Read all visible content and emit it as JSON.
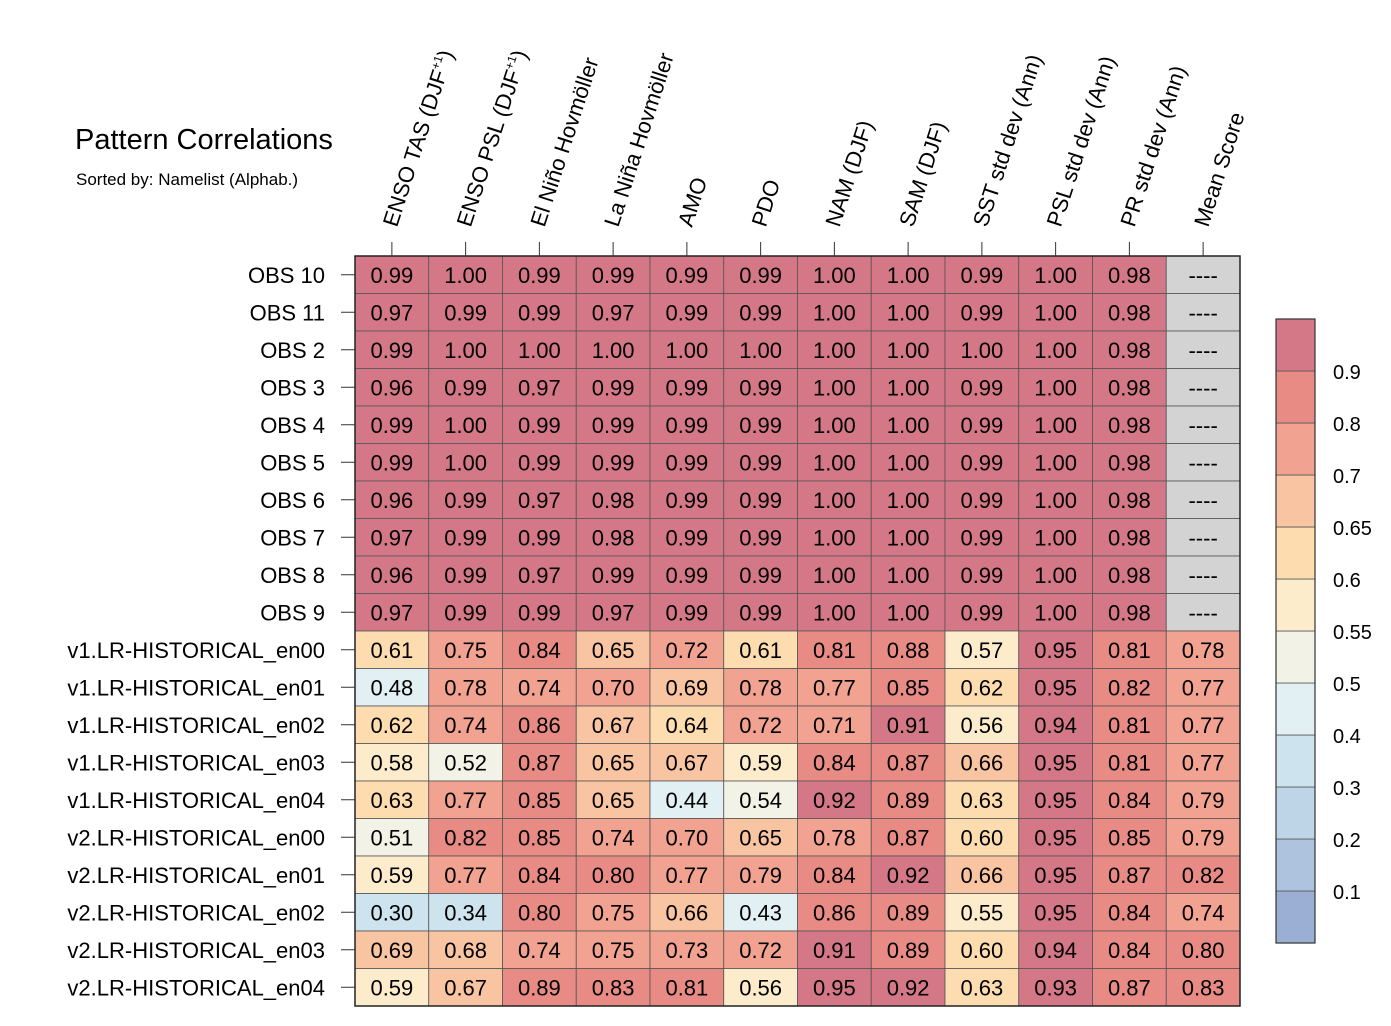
{
  "chart_data": {
    "type": "heatmap",
    "title": "Pattern Correlations",
    "subtitle": "Sorted by: Namelist (Alphab.)",
    "columns": [
      {
        "label": "ENSO TAS (DJF",
        "sup": "+1",
        "tail": ")"
      },
      {
        "label": "ENSO PSL (DJF",
        "sup": "+1",
        "tail": ")"
      },
      {
        "label": "El Niño Hovmöller"
      },
      {
        "label": "La Niña Hovmöller"
      },
      {
        "label": "AMO"
      },
      {
        "label": "PDO"
      },
      {
        "label": "NAM (DJF)"
      },
      {
        "label": "SAM (DJF)"
      },
      {
        "label": "SST std dev (Ann)"
      },
      {
        "label": "PSL std dev (Ann)"
      },
      {
        "label": "PR std dev (Ann)"
      },
      {
        "label": "Mean Score"
      }
    ],
    "rows": [
      "OBS 10",
      "OBS 11",
      "OBS 2",
      "OBS 3",
      "OBS 4",
      "OBS 5",
      "OBS 6",
      "OBS 7",
      "OBS 8",
      "OBS 9",
      "v1.LR-HISTORICAL_en00",
      "v1.LR-HISTORICAL_en01",
      "v1.LR-HISTORICAL_en02",
      "v1.LR-HISTORICAL_en03",
      "v1.LR-HISTORICAL_en04",
      "v2.LR-HISTORICAL_en00",
      "v2.LR-HISTORICAL_en01",
      "v2.LR-HISTORICAL_en02",
      "v2.LR-HISTORICAL_en03",
      "v2.LR-HISTORICAL_en04"
    ],
    "values": [
      [
        "0.99",
        "1.00",
        "0.99",
        "0.99",
        "0.99",
        "0.99",
        "1.00",
        "1.00",
        "0.99",
        "1.00",
        "0.98",
        "----"
      ],
      [
        "0.97",
        "0.99",
        "0.99",
        "0.97",
        "0.99",
        "0.99",
        "1.00",
        "1.00",
        "0.99",
        "1.00",
        "0.98",
        "----"
      ],
      [
        "0.99",
        "1.00",
        "1.00",
        "1.00",
        "1.00",
        "1.00",
        "1.00",
        "1.00",
        "1.00",
        "1.00",
        "0.98",
        "----"
      ],
      [
        "0.96",
        "0.99",
        "0.97",
        "0.99",
        "0.99",
        "0.99",
        "1.00",
        "1.00",
        "0.99",
        "1.00",
        "0.98",
        "----"
      ],
      [
        "0.99",
        "1.00",
        "0.99",
        "0.99",
        "0.99",
        "0.99",
        "1.00",
        "1.00",
        "0.99",
        "1.00",
        "0.98",
        "----"
      ],
      [
        "0.99",
        "1.00",
        "0.99",
        "0.99",
        "0.99",
        "0.99",
        "1.00",
        "1.00",
        "0.99",
        "1.00",
        "0.98",
        "----"
      ],
      [
        "0.96",
        "0.99",
        "0.97",
        "0.98",
        "0.99",
        "0.99",
        "1.00",
        "1.00",
        "0.99",
        "1.00",
        "0.98",
        "----"
      ],
      [
        "0.97",
        "0.99",
        "0.99",
        "0.98",
        "0.99",
        "0.99",
        "1.00",
        "1.00",
        "0.99",
        "1.00",
        "0.98",
        "----"
      ],
      [
        "0.96",
        "0.99",
        "0.97",
        "0.99",
        "0.99",
        "0.99",
        "1.00",
        "1.00",
        "0.99",
        "1.00",
        "0.98",
        "----"
      ],
      [
        "0.97",
        "0.99",
        "0.99",
        "0.97",
        "0.99",
        "0.99",
        "1.00",
        "1.00",
        "0.99",
        "1.00",
        "0.98",
        "----"
      ],
      [
        "0.61",
        "0.75",
        "0.84",
        "0.65",
        "0.72",
        "0.61",
        "0.81",
        "0.88",
        "0.57",
        "0.95",
        "0.81",
        "0.78"
      ],
      [
        "0.48",
        "0.78",
        "0.74",
        "0.70",
        "0.69",
        "0.78",
        "0.77",
        "0.85",
        "0.62",
        "0.95",
        "0.82",
        "0.77"
      ],
      [
        "0.62",
        "0.74",
        "0.86",
        "0.67",
        "0.64",
        "0.72",
        "0.71",
        "0.91",
        "0.56",
        "0.94",
        "0.81",
        "0.77"
      ],
      [
        "0.58",
        "0.52",
        "0.87",
        "0.65",
        "0.67",
        "0.59",
        "0.84",
        "0.87",
        "0.66",
        "0.95",
        "0.81",
        "0.77"
      ],
      [
        "0.63",
        "0.77",
        "0.85",
        "0.65",
        "0.44",
        "0.54",
        "0.92",
        "0.89",
        "0.63",
        "0.95",
        "0.84",
        "0.79"
      ],
      [
        "0.51",
        "0.82",
        "0.85",
        "0.74",
        "0.70",
        "0.65",
        "0.78",
        "0.87",
        "0.60",
        "0.95",
        "0.85",
        "0.79"
      ],
      [
        "0.59",
        "0.77",
        "0.84",
        "0.80",
        "0.77",
        "0.79",
        "0.84",
        "0.92",
        "0.66",
        "0.95",
        "0.87",
        "0.82"
      ],
      [
        "0.30",
        "0.34",
        "0.80",
        "0.75",
        "0.66",
        "0.43",
        "0.86",
        "0.89",
        "0.55",
        "0.95",
        "0.84",
        "0.74"
      ],
      [
        "0.69",
        "0.68",
        "0.74",
        "0.75",
        "0.73",
        "0.72",
        "0.91",
        "0.89",
        "0.60",
        "0.94",
        "0.84",
        "0.80"
      ],
      [
        "0.59",
        "0.67",
        "0.89",
        "0.83",
        "0.81",
        "0.56",
        "0.95",
        "0.92",
        "0.63",
        "0.93",
        "0.87",
        "0.83"
      ]
    ],
    "colorbar": {
      "levels": [
        0.1,
        0.2,
        0.3,
        0.4,
        0.5,
        0.55,
        0.6,
        0.65,
        0.7,
        0.8,
        0.9
      ],
      "labels": [
        "0.1",
        "0.2",
        "0.3",
        "0.4",
        "0.5",
        "0.55",
        "0.6",
        "0.65",
        "0.7",
        "0.8",
        "0.9"
      ],
      "colors": [
        "#9aafd3",
        "#adc3de",
        "#bdd5e6",
        "#cde3ed",
        "#e2f0f4",
        "#f3f2e6",
        "#fdeccc",
        "#fddcb0",
        "#f9c4a1",
        "#f2a290",
        "#e88b85",
        "#d47888"
      ],
      "missing_color": "#d3d3d3"
    }
  }
}
